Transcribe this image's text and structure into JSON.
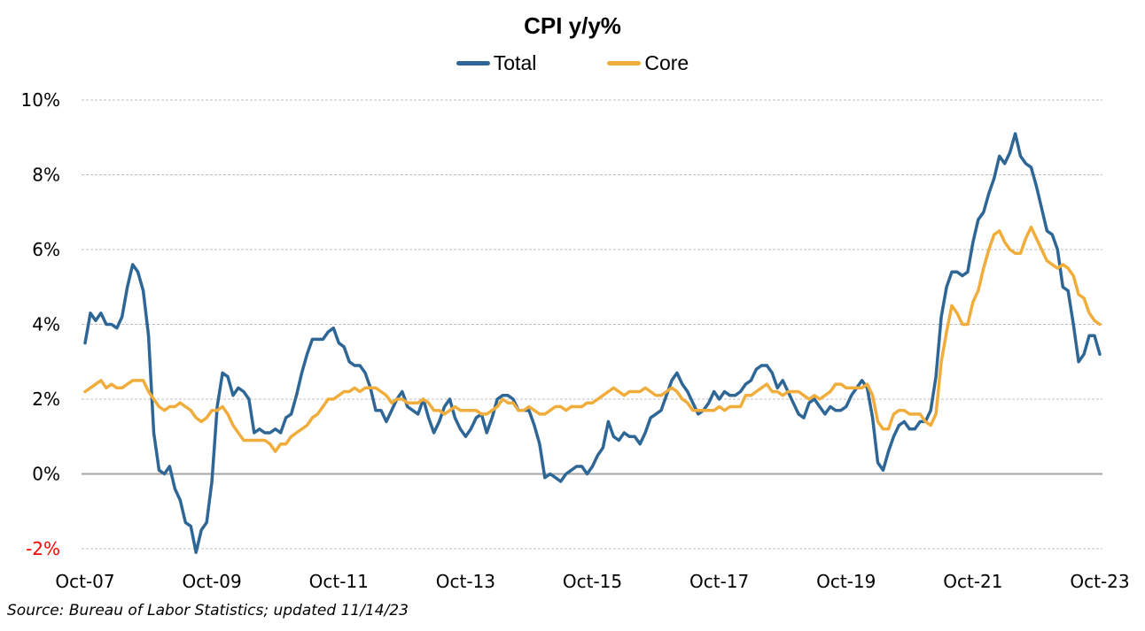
{
  "chart_data": {
    "type": "line",
    "title": "CPI y/y%",
    "source": "Source: Bureau of Labor Statistics; updated 11/14/23",
    "x_start": "Oct-07",
    "x_end": "Oct-23",
    "x_frequency": "monthly",
    "x_ticks": [
      "Oct-07",
      "Oct-09",
      "Oct-11",
      "Oct-13",
      "Oct-15",
      "Oct-17",
      "Oct-19",
      "Oct-21",
      "Oct-23"
    ],
    "y_ticks": [
      {
        "value": 10,
        "label": "10%"
      },
      {
        "value": 8,
        "label": "8%"
      },
      {
        "value": 6,
        "label": "6%"
      },
      {
        "value": 4,
        "label": "4%"
      },
      {
        "value": 2,
        "label": "2%"
      },
      {
        "value": 0,
        "label": "0%"
      },
      {
        "value": -2,
        "label": "-2%"
      }
    ],
    "ylim": [
      -2,
      10
    ],
    "grid": "horizontal dashed",
    "legend_position": "top-center",
    "colors": {
      "negative_label": "#ff0000",
      "zero_line": "#a6a6a6",
      "grid": "#bfbfbf"
    },
    "series": [
      {
        "name": "Total",
        "color": "#2e6696",
        "values": [
          3.5,
          4.3,
          4.1,
          4.3,
          4.0,
          4.0,
          3.9,
          4.2,
          5.0,
          5.6,
          5.4,
          4.9,
          3.7,
          1.1,
          0.1,
          0.0,
          0.2,
          -0.4,
          -0.7,
          -1.3,
          -1.4,
          -2.1,
          -1.5,
          -1.3,
          -0.2,
          1.8,
          2.7,
          2.6,
          2.1,
          2.3,
          2.2,
          2.0,
          1.1,
          1.2,
          1.1,
          1.1,
          1.2,
          1.1,
          1.5,
          1.6,
          2.1,
          2.7,
          3.2,
          3.6,
          3.6,
          3.6,
          3.8,
          3.9,
          3.5,
          3.4,
          3.0,
          2.9,
          2.9,
          2.7,
          2.3,
          1.7,
          1.7,
          1.4,
          1.7,
          2.0,
          2.2,
          1.8,
          1.7,
          1.6,
          2.0,
          1.5,
          1.1,
          1.4,
          1.8,
          2.0,
          1.5,
          1.2,
          1.0,
          1.2,
          1.5,
          1.6,
          1.1,
          1.5,
          2.0,
          2.1,
          2.1,
          2.0,
          1.7,
          1.7,
          1.7,
          1.3,
          0.8,
          -0.1,
          0.0,
          -0.1,
          -0.2,
          0.0,
          0.1,
          0.2,
          0.2,
          0.0,
          0.2,
          0.5,
          0.7,
          1.4,
          1.0,
          0.9,
          1.1,
          1.0,
          1.0,
          0.8,
          1.1,
          1.5,
          1.6,
          1.7,
          2.1,
          2.5,
          2.7,
          2.4,
          2.2,
          1.9,
          1.6,
          1.7,
          1.9,
          2.2,
          2.0,
          2.2,
          2.1,
          2.1,
          2.2,
          2.4,
          2.5,
          2.8,
          2.9,
          2.9,
          2.7,
          2.3,
          2.5,
          2.2,
          1.9,
          1.6,
          1.5,
          1.9,
          2.0,
          1.8,
          1.6,
          1.8,
          1.7,
          1.7,
          1.8,
          2.1,
          2.3,
          2.5,
          2.3,
          1.5,
          0.3,
          0.1,
          0.6,
          1.0,
          1.3,
          1.4,
          1.2,
          1.2,
          1.4,
          1.4,
          1.7,
          2.6,
          4.2,
          5.0,
          5.4,
          5.4,
          5.3,
          5.4,
          6.2,
          6.8,
          7.0,
          7.5,
          7.9,
          8.5,
          8.3,
          8.6,
          9.1,
          8.5,
          8.3,
          8.2,
          7.7,
          7.1,
          6.5,
          6.4,
          6.0,
          5.0,
          4.9,
          4.0,
          3.0,
          3.2,
          3.7,
          3.7,
          3.2
        ]
      },
      {
        "name": "Core",
        "color": "#f0ad3c",
        "values": [
          2.2,
          2.3,
          2.4,
          2.5,
          2.3,
          2.4,
          2.3,
          2.3,
          2.4,
          2.5,
          2.5,
          2.5,
          2.2,
          2.0,
          1.8,
          1.7,
          1.8,
          1.8,
          1.9,
          1.8,
          1.7,
          1.5,
          1.4,
          1.5,
          1.7,
          1.7,
          1.8,
          1.6,
          1.3,
          1.1,
          0.9,
          0.9,
          0.9,
          0.9,
          0.9,
          0.8,
          0.6,
          0.8,
          0.8,
          1.0,
          1.1,
          1.2,
          1.3,
          1.5,
          1.6,
          1.8,
          2.0,
          2.0,
          2.1,
          2.2,
          2.2,
          2.3,
          2.2,
          2.3,
          2.3,
          2.3,
          2.2,
          2.1,
          1.9,
          2.0,
          2.0,
          1.9,
          1.9,
          1.9,
          2.0,
          1.9,
          1.7,
          1.7,
          1.6,
          1.7,
          1.8,
          1.7,
          1.7,
          1.7,
          1.7,
          1.6,
          1.6,
          1.7,
          1.8,
          2.0,
          1.9,
          1.9,
          1.7,
          1.7,
          1.8,
          1.7,
          1.6,
          1.6,
          1.7,
          1.8,
          1.8,
          1.7,
          1.8,
          1.8,
          1.8,
          1.9,
          1.9,
          2.0,
          2.1,
          2.2,
          2.3,
          2.2,
          2.1,
          2.2,
          2.2,
          2.2,
          2.3,
          2.2,
          2.1,
          2.1,
          2.2,
          2.3,
          2.2,
          2.0,
          1.9,
          1.7,
          1.7,
          1.7,
          1.7,
          1.7,
          1.8,
          1.7,
          1.8,
          1.8,
          1.8,
          2.1,
          2.1,
          2.2,
          2.3,
          2.4,
          2.2,
          2.2,
          2.1,
          2.2,
          2.2,
          2.2,
          2.1,
          2.0,
          2.1,
          2.0,
          2.1,
          2.2,
          2.4,
          2.4,
          2.3,
          2.3,
          2.3,
          2.3,
          2.4,
          2.1,
          1.4,
          1.2,
          1.2,
          1.6,
          1.7,
          1.7,
          1.6,
          1.6,
          1.6,
          1.4,
          1.3,
          1.6,
          3.0,
          3.8,
          4.5,
          4.3,
          4.0,
          4.0,
          4.6,
          4.9,
          5.5,
          6.0,
          6.4,
          6.5,
          6.2,
          6.0,
          5.9,
          5.9,
          6.3,
          6.6,
          6.3,
          6.0,
          5.7,
          5.6,
          5.5,
          5.6,
          5.5,
          5.3,
          4.8,
          4.7,
          4.3,
          4.1,
          4.0
        ]
      }
    ]
  }
}
